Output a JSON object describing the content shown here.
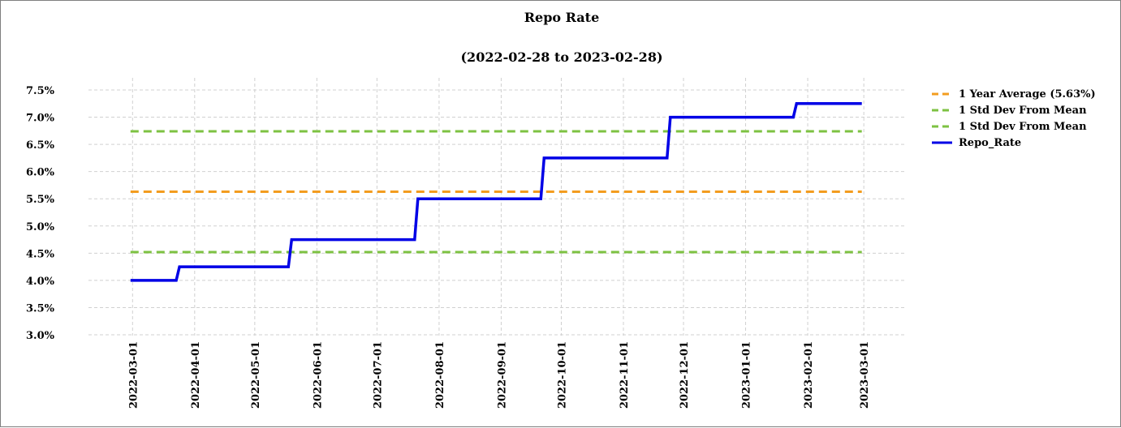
{
  "chart_data": {
    "type": "line",
    "title": "Repo Rate",
    "subtitle": "(2022-02-28 to 2023-02-28)",
    "xlabel": "",
    "ylabel": "",
    "xlim": [
      "2022-03-01",
      "2023-03-01"
    ],
    "ylim": [
      3.0,
      7.5
    ],
    "y_ticks": [
      3.0,
      3.5,
      4.0,
      4.5,
      5.0,
      5.5,
      6.0,
      6.5,
      7.0,
      7.5
    ],
    "y_tick_labels": [
      "3.0%",
      "3.5%",
      "4.0%",
      "4.5%",
      "5.0%",
      "5.5%",
      "6.0%",
      "6.5%",
      "7.0%",
      "7.5%"
    ],
    "x_ticks": [
      "2022-03-01",
      "2022-04-01",
      "2022-05-01",
      "2022-06-01",
      "2022-07-01",
      "2022-08-01",
      "2022-09-01",
      "2022-10-01",
      "2022-11-01",
      "2022-12-01",
      "2023-01-01",
      "2023-02-01",
      "2023-03-01"
    ],
    "grid": true,
    "legend_position": "right",
    "series": [
      {
        "name": "1 Year Average (5.63%)",
        "style": "dashed",
        "color": "#f39c1f",
        "x": [
          "2022-02-28",
          "2023-02-28"
        ],
        "y": [
          5.63,
          5.63
        ]
      },
      {
        "name": "1 Std Dev From Mean",
        "style": "dashed",
        "color": "#7dc242",
        "x": [
          "2022-02-28",
          "2023-02-28"
        ],
        "y": [
          6.74,
          6.74
        ]
      },
      {
        "name": "1 Std Dev From Mean",
        "style": "dashed",
        "color": "#7dc242",
        "x": [
          "2022-02-28",
          "2023-02-28"
        ],
        "y": [
          4.52,
          4.52
        ]
      },
      {
        "name": "Repo_Rate",
        "style": "step",
        "color": "#0000e6",
        "x": [
          "2022-02-28",
          "2022-03-24",
          "2022-05-19",
          "2022-07-21",
          "2022-09-22",
          "2022-11-24",
          "2023-01-26",
          "2023-02-28"
        ],
        "y": [
          4.0,
          4.25,
          4.75,
          5.5,
          6.25,
          7.0,
          7.25,
          7.25
        ]
      }
    ]
  }
}
